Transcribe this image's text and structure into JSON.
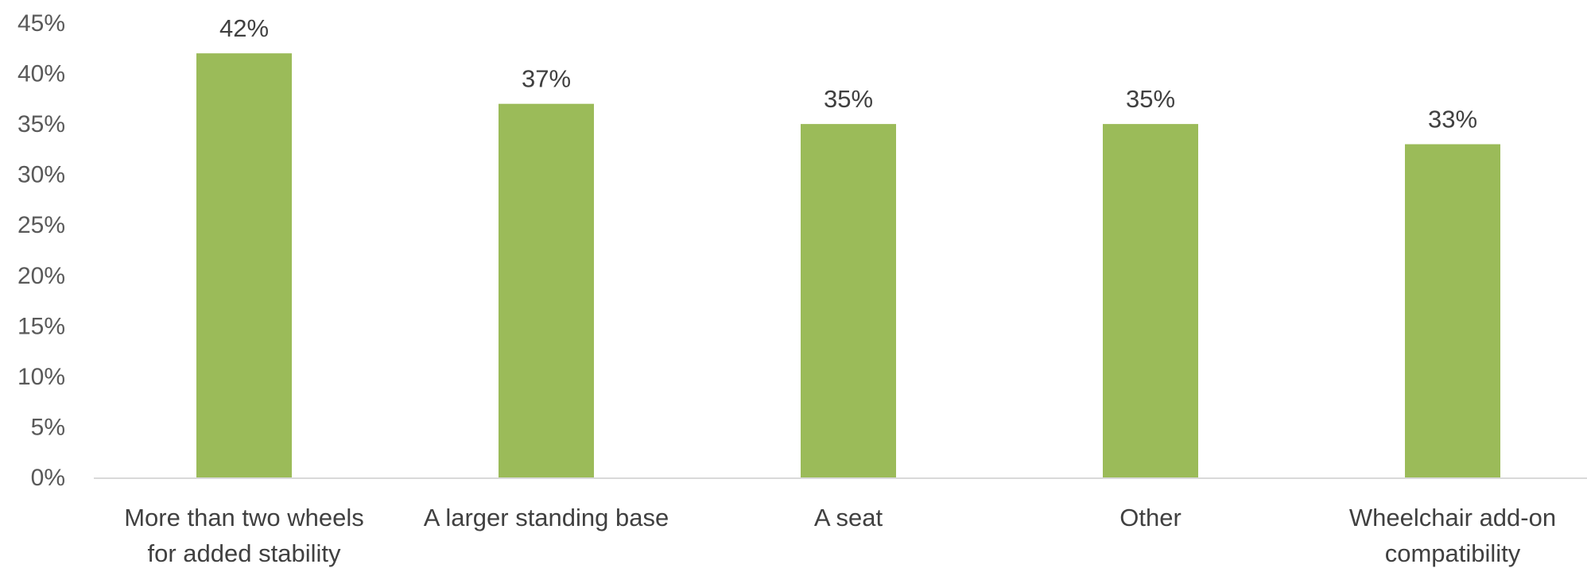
{
  "chart_data": {
    "type": "bar",
    "categories": [
      [
        "More than two wheels",
        "for added stability"
      ],
      [
        "A larger standing base"
      ],
      [
        "A seat"
      ],
      [
        "Other"
      ],
      [
        "Wheelchair add-on",
        "compatibility"
      ]
    ],
    "values": [
      42,
      37,
      35,
      35,
      33
    ],
    "value_labels": [
      "42%",
      "37%",
      "35%",
      "35%",
      "33%"
    ],
    "y_ticks": [
      "0%",
      "5%",
      "10%",
      "15%",
      "20%",
      "25%",
      "30%",
      "35%",
      "40%",
      "45%"
    ],
    "ylim": [
      0,
      45
    ],
    "bar_color": "#9bbb59",
    "grid": false,
    "legend": false
  }
}
